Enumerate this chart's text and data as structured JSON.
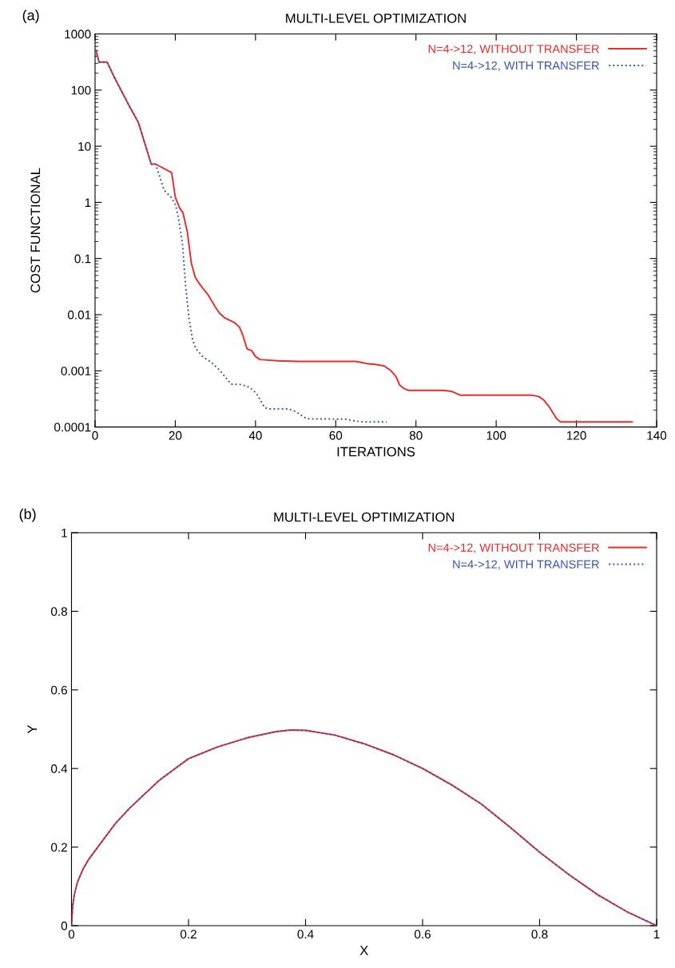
{
  "chart_data": [
    {
      "type": "line",
      "title": "MULTI-LEVEL OPTIMIZATION",
      "xlabel": "ITERATIONS",
      "ylabel": "COST FUNCTIONAL",
      "annotations": [
        "(a)"
      ],
      "log": "y",
      "xlim": [
        0,
        140
      ],
      "xticks": [
        0,
        20,
        40,
        60,
        80,
        100,
        120,
        140
      ],
      "ylim": [
        0.0001,
        1000
      ],
      "yticks": [
        0.0001,
        0.001,
        0.01,
        0.1,
        1,
        10,
        100,
        1000
      ],
      "grid": false,
      "legend": "top right",
      "marker": "none",
      "series": [
        {
          "name": "N=4->12, WITHOUT TRANSFER",
          "color": "#ee2a2a",
          "line_style": "solid",
          "x": [
            0.2,
            1,
            3,
            4.8,
            8.8,
            10.8,
            14,
            15.1,
            19.1,
            20,
            21.1,
            21.9,
            23,
            24,
            25,
            26.2,
            28.1,
            29.9,
            31,
            32.2,
            34.9,
            36,
            36.9,
            37.9,
            39,
            40,
            41.1,
            45.5,
            50.7,
            64.9,
            66.6,
            68.1,
            69.9,
            72.1,
            73.8,
            75,
            76,
            77.1,
            78.1,
            86.7,
            88.9,
            91,
            92.7,
            108.6,
            110.6,
            111.9,
            113.2,
            115.1,
            116.1,
            133.9
          ],
          "values": [
            516,
            316,
            316,
            169,
            48,
            26.5,
            4.8,
            4.8,
            3.4,
            1.24,
            0.79,
            0.66,
            0.3,
            0.083,
            0.046,
            0.034,
            0.023,
            0.014,
            0.0107,
            0.0089,
            0.0071,
            0.006,
            0.0042,
            0.00245,
            0.0023,
            0.0018,
            0.00159,
            0.00151,
            0.00147,
            0.00147,
            0.0014,
            0.00133,
            0.0013,
            0.00122,
            0.001,
            0.00079,
            0.00055,
            0.00048,
            0.00045,
            0.00045,
            0.00043,
            0.00037,
            0.00037,
            0.00037,
            0.00035,
            0.0003,
            0.00023,
            0.000139,
            0.000123,
            0.000123
          ]
        },
        {
          "name": "N=4->12, WITH TRANSFER",
          "color": "#3a55b0",
          "line_style": "dotted",
          "x": [
            0.2,
            1,
            3,
            4.8,
            8.8,
            10.8,
            14,
            15.1,
            17.2,
            19,
            20.1,
            20.9,
            21.8,
            22.6,
            23.4,
            24.3,
            25.1,
            26.8,
            28.9,
            31,
            33.9,
            36.4,
            38.5,
            40.2,
            42.3,
            43.6,
            48.2,
            49.9,
            52.8,
            62.5,
            64.2,
            66.7,
            72.7
          ],
          "values": [
            516,
            316,
            316,
            169,
            48,
            26.5,
            4.8,
            4.8,
            1.66,
            1.22,
            0.89,
            0.48,
            0.18,
            0.031,
            0.0089,
            0.0036,
            0.0025,
            0.0018,
            0.00143,
            0.00104,
            0.00058,
            0.00057,
            0.00051,
            0.0004,
            0.00022,
            0.00021,
            0.00021,
            0.00019,
            0.00014,
            0.000138,
            0.00013,
            0.000123,
            0.000123
          ]
        }
      ]
    },
    {
      "type": "line",
      "title": "MULTI-LEVEL OPTIMIZATION",
      "xlabel": "X",
      "ylabel": "Y",
      "annotations": [
        "(b)"
      ],
      "xlim": [
        0,
        1
      ],
      "xticks": [
        0,
        0.2,
        0.4,
        0.6,
        0.8,
        1
      ],
      "ylim": [
        0,
        1
      ],
      "yticks": [
        0,
        0.2,
        0.4,
        0.6,
        0.8,
        1
      ],
      "grid": false,
      "legend": "top right",
      "marker": "none",
      "series": [
        {
          "name": "N=4->12, WITHOUT TRANSFER",
          "color": "#ee2a2a",
          "line_style": "solid",
          "x": [
            0,
            0.002,
            0.005,
            0.01,
            0.02,
            0.03,
            0.05,
            0.075,
            0.1,
            0.15,
            0.2,
            0.25,
            0.3,
            0.35,
            0.375,
            0.4,
            0.45,
            0.5,
            0.55,
            0.6,
            0.65,
            0.7,
            0.75,
            0.8,
            0.85,
            0.9,
            0.95,
            1
          ],
          "values": [
            0,
            0.05,
            0.08,
            0.11,
            0.145,
            0.17,
            0.21,
            0.26,
            0.3,
            0.37,
            0.425,
            0.455,
            0.478,
            0.494,
            0.498,
            0.497,
            0.485,
            0.463,
            0.435,
            0.4,
            0.358,
            0.31,
            0.25,
            0.187,
            0.13,
            0.078,
            0.035,
            0
          ]
        },
        {
          "name": "N=4->12, WITH TRANSFER",
          "color": "#3a55b0",
          "line_style": "dotted",
          "x": [
            0,
            0.002,
            0.005,
            0.01,
            0.02,
            0.03,
            0.05,
            0.075,
            0.1,
            0.15,
            0.2,
            0.25,
            0.3,
            0.35,
            0.375,
            0.4,
            0.45,
            0.5,
            0.55,
            0.6,
            0.65,
            0.7,
            0.75,
            0.8,
            0.85,
            0.9,
            0.95,
            1
          ],
          "values": [
            0,
            0.05,
            0.08,
            0.11,
            0.145,
            0.17,
            0.21,
            0.26,
            0.3,
            0.37,
            0.425,
            0.455,
            0.478,
            0.494,
            0.498,
            0.497,
            0.485,
            0.463,
            0.435,
            0.4,
            0.358,
            0.31,
            0.25,
            0.187,
            0.13,
            0.078,
            0.035,
            0
          ]
        }
      ]
    }
  ]
}
